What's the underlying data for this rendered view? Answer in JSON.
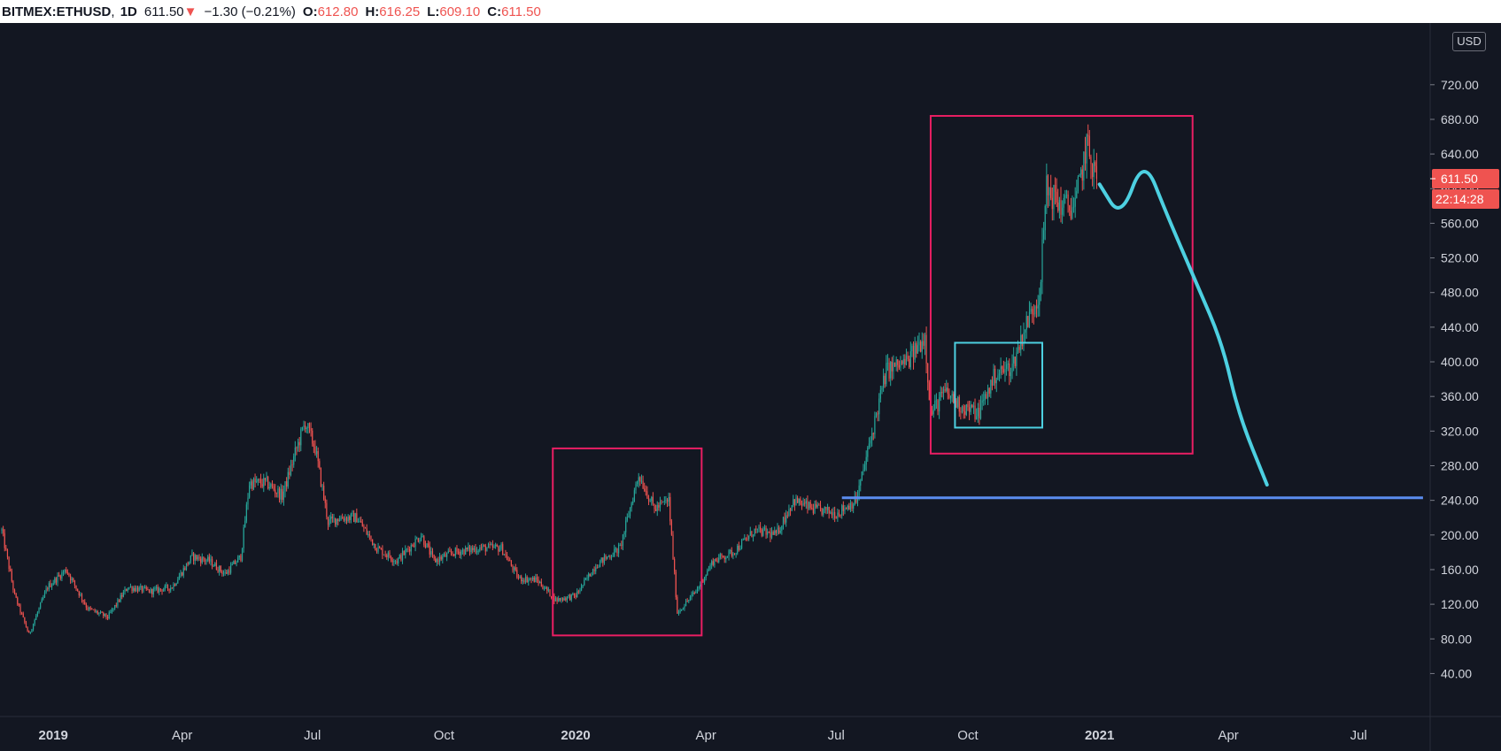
{
  "header": {
    "symbol": "BITMEX:ETHUSD",
    "interval": "1D",
    "last": "611.50",
    "change_arrow": "▼",
    "change": "−1.30 (−0.21%)",
    "o_label": "O:",
    "o": "612.80",
    "h_label": "H:",
    "h": "616.25",
    "l_label": "L:",
    "l": "609.10",
    "c_label": "C:",
    "c": "611.50"
  },
  "price_axis": {
    "currency": "USD",
    "last_price_tag": "611.50",
    "countdown_tag": "22:14:28"
  },
  "colors": {
    "background": "#131722",
    "up": "#26a69a",
    "down": "#ef5350",
    "box_red": "#e91e63",
    "box_cyan": "#4dd0e1",
    "hline": "#5b8def",
    "projection": "#4dd0e1"
  },
  "chart_data": {
    "type": "candlestick",
    "title": "",
    "y_ticks": [
      "40.00",
      "80.00",
      "120.00",
      "160.00",
      "200.00",
      "240.00",
      "280.00",
      "320.00",
      "360.00",
      "400.00",
      "440.00",
      "480.00",
      "520.00",
      "560.00",
      "600.00",
      "640.00",
      "680.00",
      "720.00"
    ],
    "x_ticks": [
      "2019",
      "Apr",
      "Jul",
      "Oct",
      "2020",
      "Apr",
      "Jul",
      "Oct",
      "2021",
      "Apr",
      "Jul"
    ],
    "ylim": [
      20,
      730
    ],
    "xlim": [
      "2018-11-26",
      "2021-08-20"
    ],
    "price_path": [
      [
        "2018-11-26",
        205
      ],
      [
        "2018-12-05",
        130
      ],
      [
        "2018-12-15",
        85
      ],
      [
        "2018-12-28",
        140
      ],
      [
        "2019-01-10",
        160
      ],
      [
        "2019-01-25",
        115
      ],
      [
        "2019-02-08",
        105
      ],
      [
        "2019-02-22",
        140
      ],
      [
        "2019-03-10",
        135
      ],
      [
        "2019-03-25",
        140
      ],
      [
        "2019-04-08",
        175
      ],
      [
        "2019-04-20",
        170
      ],
      [
        "2019-05-01",
        155
      ],
      [
        "2019-05-12",
        175
      ],
      [
        "2019-05-18",
        260
      ],
      [
        "2019-05-30",
        260
      ],
      [
        "2019-06-10",
        245
      ],
      [
        "2019-06-20",
        300
      ],
      [
        "2019-06-26",
        330
      ],
      [
        "2019-07-03",
        300
      ],
      [
        "2019-07-12",
        215
      ],
      [
        "2019-07-20",
        220
      ],
      [
        "2019-08-01",
        220
      ],
      [
        "2019-08-15",
        185
      ],
      [
        "2019-08-29",
        170
      ],
      [
        "2019-09-15",
        200
      ],
      [
        "2019-09-24",
        170
      ],
      [
        "2019-10-08",
        180
      ],
      [
        "2019-10-26",
        185
      ],
      [
        "2019-11-10",
        185
      ],
      [
        "2019-11-22",
        150
      ],
      [
        "2019-12-05",
        148
      ],
      [
        "2019-12-18",
        125
      ],
      [
        "2020-01-01",
        130
      ],
      [
        "2020-01-15",
        165
      ],
      [
        "2020-02-01",
        185
      ],
      [
        "2020-02-14",
        270
      ],
      [
        "2020-02-25",
        230
      ],
      [
        "2020-03-06",
        240
      ],
      [
        "2020-03-12",
        110
      ],
      [
        "2020-03-25",
        135
      ],
      [
        "2020-04-06",
        170
      ],
      [
        "2020-04-20",
        180
      ],
      [
        "2020-05-05",
        205
      ],
      [
        "2020-05-20",
        200
      ],
      [
        "2020-06-01",
        240
      ],
      [
        "2020-06-15",
        230
      ],
      [
        "2020-07-01",
        225
      ],
      [
        "2020-07-15",
        240
      ],
      [
        "2020-07-25",
        310
      ],
      [
        "2020-08-05",
        390
      ],
      [
        "2020-08-20",
        400
      ],
      [
        "2020-09-01",
        430
      ],
      [
        "2020-09-05",
        340
      ],
      [
        "2020-09-15",
        365
      ],
      [
        "2020-09-25",
        350
      ],
      [
        "2020-10-08",
        340
      ],
      [
        "2020-10-20",
        385
      ],
      [
        "2020-11-01",
        395
      ],
      [
        "2020-11-10",
        440
      ],
      [
        "2020-11-20",
        480
      ],
      [
        "2020-11-25",
        600
      ],
      [
        "2020-12-05",
        580
      ],
      [
        "2020-12-15",
        580
      ],
      [
        "2020-12-23",
        650
      ],
      [
        "2020-12-30",
        611.5
      ]
    ],
    "annotations": [
      {
        "type": "rectangle",
        "color": "red",
        "from": "2019-12-16",
        "to": "2020-03-29",
        "y0": 84,
        "y1": 300
      },
      {
        "type": "rectangle",
        "color": "red",
        "from": "2020-09-05",
        "to": "2021-03-07",
        "y0": 294,
        "y1": 684
      },
      {
        "type": "rectangle",
        "color": "cyan",
        "from": "2020-09-22",
        "to": "2020-11-22",
        "y0": 324,
        "y1": 422
      },
      {
        "type": "horizontal_line",
        "color": "blue",
        "from": "2020-07-05",
        "to": "2021-08-15",
        "y": 243
      },
      {
        "type": "projection",
        "color": "cyan",
        "points": [
          [
            "2021-01-01",
            605
          ],
          [
            "2021-01-16",
            565
          ],
          [
            "2021-02-01",
            637
          ],
          [
            "2021-02-17",
            570
          ],
          [
            "2021-03-10",
            490
          ],
          [
            "2021-03-28",
            420
          ],
          [
            "2021-04-08",
            340
          ],
          [
            "2021-04-28",
            258
          ]
        ]
      }
    ]
  }
}
